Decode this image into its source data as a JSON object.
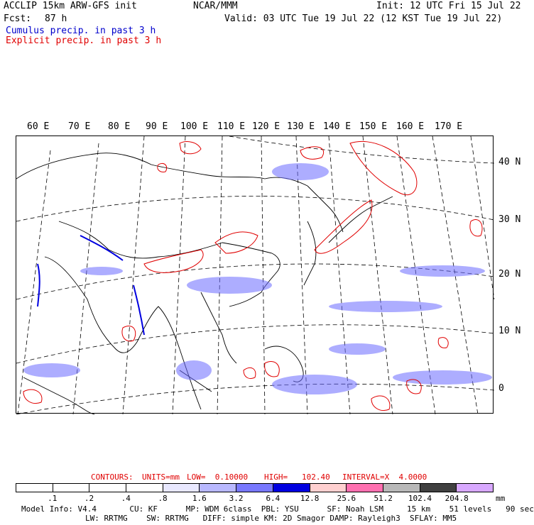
{
  "header": {
    "model_title": "ACCLIP 15km ARW-GFS init",
    "org": "NCAR/MMM",
    "init": "Init: 12 UTC Fri 15 Jul 22",
    "fcst_label": "Fcst:",
    "fcst_value": "87 h",
    "valid": "Valid: 03 UTC Tue 19 Jul 22 (12 KST Tue 19 Jul 22)",
    "legend_cumulus": "Cumulus precip. in past 3 h",
    "legend_explicit": "Explicit precip. in past 3 h"
  },
  "map": {
    "lon_labels": [
      "60 E",
      "70 E",
      "80 E",
      "90 E",
      "100 E",
      "110 E",
      "120 E",
      "130 E",
      "140 E",
      "150 E",
      "160 E",
      "170 E"
    ],
    "lat_labels": [
      "40 N",
      "30 N",
      "20 N",
      "10 N",
      "0"
    ]
  },
  "contour_line": {
    "contours": "CONTOURS:",
    "units": "UNITS=mm",
    "low": "LOW=  0.10000",
    "high": "HIGH=   102.40",
    "interval": "INTERVAL=X  4.0000"
  },
  "colorbar": {
    "ticks": [
      ".1",
      ".2",
      ".4",
      ".8",
      "1.6",
      "3.2",
      "6.4",
      "12.8",
      "25.6",
      "51.2",
      "102.4",
      "204.8"
    ],
    "unit": "mm",
    "colors": [
      "#ffffff",
      "#ffffff",
      "#ffffff",
      "#ffffff",
      "#e8e8ff",
      "#b8b8ff",
      "#7878ff",
      "#0000e0",
      "#ffd0d0",
      "#ff70b0",
      "#b8b8b8",
      "#404040",
      "#d8a8ff"
    ]
  },
  "footer": {
    "line1": "Model Info: V4.4       CU: KF      MP: WDM 6class  PBL: YSU      SF: Noah LSM     15 km    51 levels   90 sec",
    "line2": "LW: RRTMG    SW: RRTMG   DIFF: simple KM: 2D Smagor DAMP: Rayleigh3  SFLAY: MM5"
  }
}
